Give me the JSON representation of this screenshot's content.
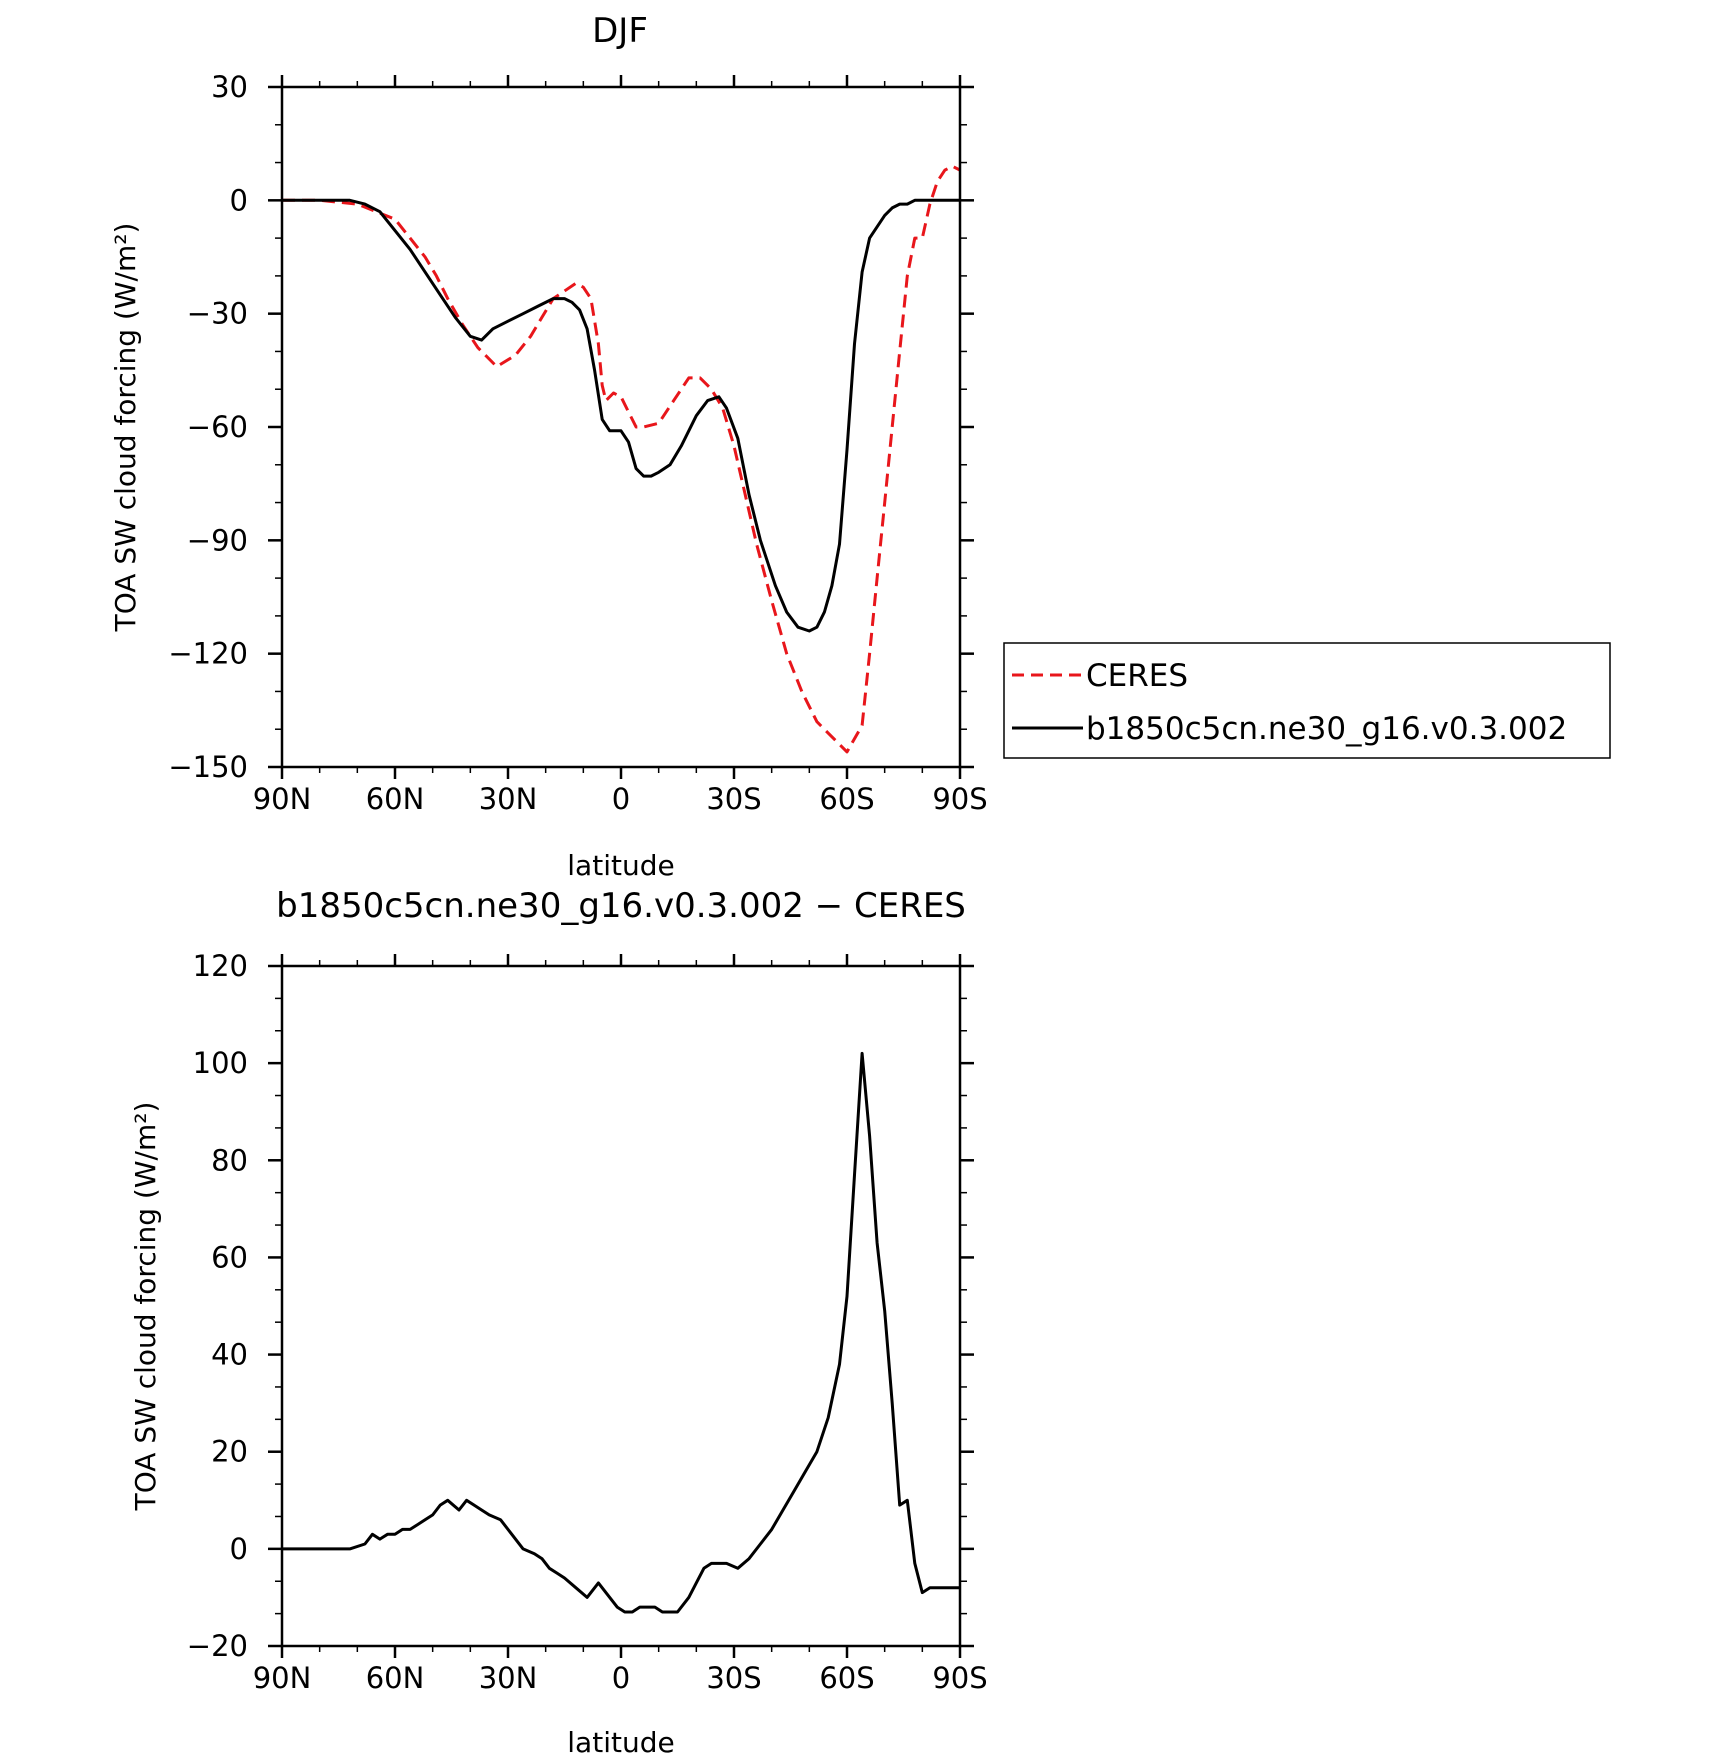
{
  "chart_data": [
    {
      "type": "line",
      "title": "DJF",
      "xlabel": "latitude",
      "ylabel": "TOA SW cloud forcing (W/m²)",
      "xlim": [
        90,
        -90
      ],
      "ylim": [
        -150,
        30
      ],
      "x_ticks": [
        90,
        60,
        30,
        0,
        -30,
        -60,
        -90
      ],
      "x_tick_labels": [
        "90N",
        "60N",
        "30N",
        "0",
        "30S",
        "60S",
        "90S"
      ],
      "y_ticks": [
        30,
        0,
        -30,
        -60,
        -90,
        -120,
        -150
      ],
      "y_tick_labels": [
        "30",
        "0",
        "−30",
        "−60",
        "−90",
        "−120",
        "−150"
      ],
      "legend_position": "right",
      "series": [
        {
          "name": "CERES",
          "color": "#e8161b",
          "dash": "dashed",
          "x": [
            90,
            80,
            70,
            65,
            60,
            56,
            52,
            49,
            46,
            42,
            38,
            36,
            33,
            28,
            24,
            21,
            18,
            15,
            12,
            10,
            8,
            6,
            5,
            4,
            2,
            0,
            -2,
            -4,
            -6,
            -10,
            -14,
            -18,
            -21,
            -24,
            -27,
            -30,
            -33,
            -36,
            -40,
            -44,
            -48,
            -52,
            -56,
            -60,
            -64,
            -66,
            -68,
            -70,
            -72,
            -74,
            -76,
            -78,
            -80,
            -82,
            -84,
            -86,
            -88,
            -90
          ],
          "y": [
            0,
            0,
            -1,
            -3,
            -5,
            -10,
            -15,
            -20,
            -26,
            -33,
            -39,
            -41,
            -44,
            -41,
            -36,
            -31,
            -26,
            -24,
            -22,
            -23,
            -26,
            -38,
            -49,
            -53,
            -51,
            -52,
            -56,
            -60,
            -60,
            -59,
            -53,
            -47,
            -47,
            -50,
            -55,
            -65,
            -78,
            -91,
            -106,
            -120,
            -130,
            -138,
            -142,
            -146,
            -139,
            -120,
            -100,
            -80,
            -60,
            -40,
            -20,
            -10,
            -10,
            -1,
            5,
            8,
            9,
            8
          ]
        },
        {
          "name": "b1850c5cn.ne30_g16.v0.3.002",
          "color": "#000000",
          "dash": "solid",
          "x": [
            90,
            80,
            72,
            68,
            64,
            60,
            56,
            52,
            48,
            44,
            40,
            37,
            34,
            30,
            26,
            22,
            18,
            15,
            13,
            11,
            9,
            7,
            5,
            3,
            1,
            0,
            -2,
            -4,
            -6,
            -8,
            -10,
            -13,
            -16,
            -20,
            -23,
            -26,
            -28,
            -31,
            -34,
            -37,
            -41,
            -44,
            -47,
            -50,
            -52,
            -54,
            -56,
            -58,
            -60,
            -62,
            -64,
            -66,
            -68,
            -70,
            -72,
            -74,
            -76,
            -78,
            -80,
            -82,
            -84,
            -86,
            -88,
            -90
          ],
          "y": [
            0,
            0,
            0,
            -1,
            -3,
            -8,
            -13,
            -19,
            -25,
            -31,
            -36,
            -37,
            -34,
            -32,
            -30,
            -28,
            -26,
            -26,
            -27,
            -29,
            -34,
            -45,
            -58,
            -61,
            -61,
            -61,
            -64,
            -71,
            -73,
            -73,
            -72,
            -70,
            -65,
            -57,
            -53,
            -52,
            -55,
            -63,
            -78,
            -90,
            -102,
            -109,
            -113,
            -114,
            -113,
            -109,
            -102,
            -91,
            -66,
            -38,
            -19,
            -10,
            -7,
            -4,
            -2,
            -1,
            -1,
            0,
            0,
            0,
            0,
            0,
            0,
            0
          ]
        }
      ]
    },
    {
      "type": "line",
      "title": "b1850c5cn.ne30_g16.v0.3.002 − CERES",
      "xlabel": "latitude",
      "ylabel": "TOA SW cloud forcing (W/m²)",
      "xlim": [
        90,
        -90
      ],
      "ylim": [
        -20,
        120
      ],
      "x_ticks": [
        90,
        60,
        30,
        0,
        -30,
        -60,
        -90
      ],
      "x_tick_labels": [
        "90N",
        "60N",
        "30N",
        "0",
        "30S",
        "60S",
        "90S"
      ],
      "y_ticks": [
        120,
        100,
        80,
        60,
        40,
        20,
        0,
        -20
      ],
      "y_tick_labels": [
        "120",
        "100",
        "80",
        "60",
        "40",
        "20",
        "0",
        "−20"
      ],
      "series": [
        {
          "color": "#000000",
          "dash": "solid",
          "x": [
            90,
            80,
            72,
            68,
            66,
            64,
            62,
            60,
            58,
            56,
            54,
            52,
            50,
            48,
            46,
            43,
            41,
            39,
            37,
            35,
            32,
            29,
            26,
            23,
            21,
            19,
            17,
            15,
            12,
            9,
            6,
            3,
            1,
            -1,
            -3,
            -5,
            -7,
            -9,
            -11,
            -13,
            -15,
            -18,
            -20,
            -22,
            -24,
            -26,
            -28,
            -31,
            -34,
            -37,
            -40,
            -43,
            -46,
            -49,
            -52,
            -55,
            -58,
            -60,
            -62,
            -64,
            -66,
            -68,
            -70,
            -72,
            -74,
            -76,
            -78,
            -80,
            -82,
            -84,
            -86,
            -88,
            -90
          ],
          "y": [
            0,
            0,
            0,
            1,
            3,
            2,
            3,
            3,
            4,
            4,
            5,
            6,
            7,
            9,
            10,
            8,
            10,
            9,
            8,
            7,
            6,
            3,
            0,
            -1,
            -2,
            -4,
            -5,
            -6,
            -8,
            -10,
            -7,
            -10,
            -12,
            -13,
            -13,
            -12,
            -12,
            -12,
            -13,
            -13,
            -13,
            -10,
            -7,
            -4,
            -3,
            -3,
            -3,
            -4,
            -2,
            1,
            4,
            8,
            12,
            16,
            20,
            27,
            38,
            52,
            77,
            102,
            85,
            63,
            49,
            30,
            9,
            10,
            -3,
            -9,
            -8,
            -8,
            -8,
            -8,
            -8
          ]
        }
      ]
    }
  ],
  "legend": {
    "items": [
      "CERES",
      "b1850c5cn.ne30_g16.v0.3.002"
    ]
  }
}
